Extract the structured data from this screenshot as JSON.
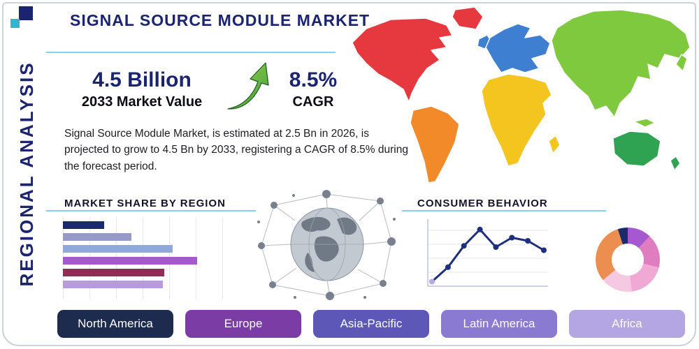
{
  "header": {
    "title": "SIGNAL SOURCE MODULE MARKET",
    "side_label": "REGIONAL ANALYSIS"
  },
  "stats": {
    "value": "4.5 Billion",
    "value_caption": "2033 Market Value",
    "cagr": "8.5%",
    "cagr_caption": "CAGR",
    "description": "Signal Source Module Market, is estimated at 2.5 Bn in 2026, is projected to grow to 4.5 Bn by 2033, registering a CAGR of 8.5% during the forecast period."
  },
  "sections": {
    "market_share_title": "MARKET SHARE BY REGION",
    "consumer_behavior_title": "CONSUMER BEHAVIOR"
  },
  "chart_data": [
    {
      "id": "market_share",
      "type": "bar",
      "title": "MARKET SHARE BY REGION",
      "orientation": "horizontal",
      "values": [
        24,
        40,
        64,
        78,
        59,
        58
      ],
      "value_unit": "percent-of-axis-estimated",
      "colors": [
        "#1b2a6b",
        "#9799c9",
        "#8fa9dd",
        "#a45ac9",
        "#8f2d55",
        "#b79bdb"
      ],
      "grid": "vertical"
    },
    {
      "id": "consumer_behavior",
      "type": "line",
      "title": "CONSUMER BEHAVIOR",
      "x": [
        1,
        2,
        3,
        4,
        5,
        6,
        7,
        8
      ],
      "values": [
        5,
        28,
        62,
        88,
        60,
        75,
        70,
        55
      ],
      "ylim": [
        0,
        100
      ],
      "line_color": "#1e2f7d",
      "first_point_color": "#b9a8e2",
      "grid": "horizontal"
    },
    {
      "id": "region_donut",
      "type": "pie",
      "donut": true,
      "title": "Regional split donut",
      "values": [
        12,
        17,
        19,
        16,
        31,
        5
      ],
      "colors": [
        "#a558cf",
        "#e07cc0",
        "#f0a8d4",
        "#f6c9e2",
        "#ec8e4f",
        "#1b2a6b"
      ]
    }
  ],
  "map": {
    "continents": [
      {
        "name": "north-america",
        "color": "#e6393f"
      },
      {
        "name": "greenland",
        "color": "#e6393f"
      },
      {
        "name": "south-america",
        "color": "#f28a2a"
      },
      {
        "name": "europe",
        "color": "#3f7fd1"
      },
      {
        "name": "uk",
        "color": "#3f7fd1"
      },
      {
        "name": "africa",
        "color": "#f5c51f"
      },
      {
        "name": "madagascar",
        "color": "#f5c51f"
      },
      {
        "name": "asia",
        "color": "#7fc93f"
      },
      {
        "name": "japan",
        "color": "#7fc93f"
      },
      {
        "name": "indonesia",
        "color": "#7fc93f"
      },
      {
        "name": "australia",
        "color": "#2fa351"
      },
      {
        "name": "new-zealand",
        "color": "#2fa351"
      }
    ]
  },
  "regions": [
    {
      "label": "North America",
      "color": "#1d2b4f"
    },
    {
      "label": "Europe",
      "color": "#7b3ca6"
    },
    {
      "label": "Asia-Pacific",
      "color": "#5d58b8"
    },
    {
      "label": "Latin America",
      "color": "#8a7ad2"
    },
    {
      "label": "Africa",
      "color": "#b4a6e3"
    }
  ],
  "icons": {
    "growth_arrow": "curved-up-right-arrow",
    "globe_network": "connected-globe-illustration"
  },
  "theme": {
    "accent_teal": "#85d3e6",
    "navy": "#1b2470",
    "frame_border": "#ccd2d9"
  }
}
